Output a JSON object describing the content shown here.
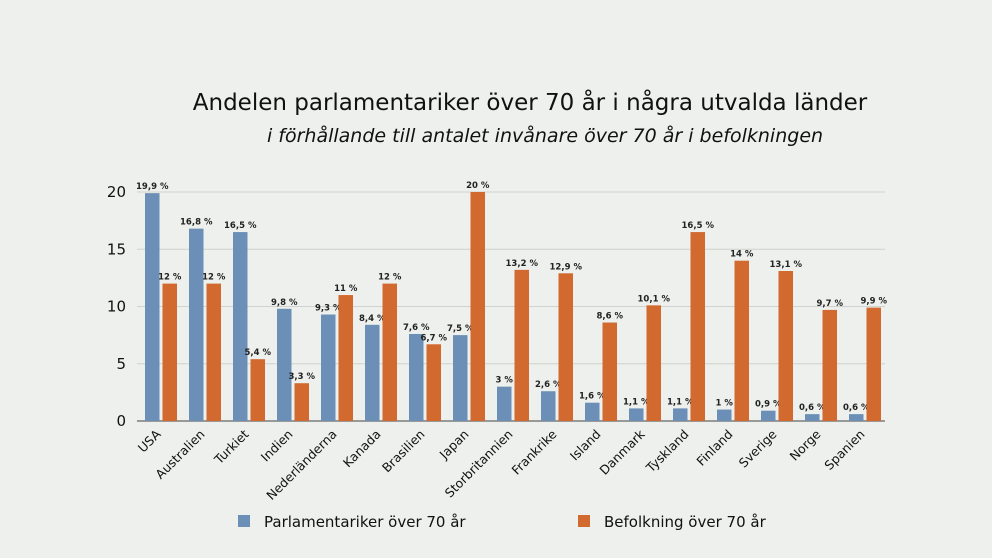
{
  "chart_data": {
    "type": "bar",
    "title": "Andelen parlamentariker över 70 år i några utvalda länder",
    "subtitle": "i förhållande till antalet invånare över 70 år i befolkningen",
    "xlabel": "",
    "ylabel": "",
    "ylim": [
      0,
      20
    ],
    "yticks": [
      0,
      5,
      10,
      15,
      20
    ],
    "grid": true,
    "legend_position": "bottom",
    "categories": [
      "USA",
      "Australien",
      "Turkiet",
      "Indien",
      "Nederländerna",
      "Kanada",
      "Brasilien",
      "Japan",
      "Storbritannien",
      "Frankrike",
      "Island",
      "Danmark",
      "Tyskland",
      "Finland",
      "Sverige",
      "Norge",
      "Spanien"
    ],
    "series": [
      {
        "name": "Parlamentariker över 70 år",
        "color": "#6b8fb6",
        "values": [
          19.9,
          16.8,
          16.5,
          9.8,
          9.3,
          8.4,
          7.6,
          7.5,
          3,
          2.6,
          1.6,
          1.1,
          1.1,
          1,
          0.9,
          0.6,
          0.6
        ],
        "labels": [
          "19,9 %",
          "16,8 %",
          "16,5 %",
          "9,8 %",
          "9,3 %",
          "8,4 %",
          "7,6 %",
          "7,5 %",
          "3 %",
          "2,6 %",
          "1,6 %",
          "1,1 %",
          "1,1 %",
          "1 %",
          "0,9 %",
          "0,6 %",
          "0,6 %"
        ]
      },
      {
        "name": "Befolkning över 70 år",
        "color": "#d2692f",
        "values": [
          12,
          12,
          5.4,
          3.3,
          11,
          12,
          6.7,
          20,
          13.2,
          12.9,
          8.6,
          10.1,
          16.5,
          14,
          13.1,
          9.7,
          9.9
        ],
        "labels": [
          "12 %",
          "12 %",
          "5,4 %",
          "3,3 %",
          "11 %",
          "12 %",
          "6,7 %",
          "20 %",
          "13,2 %",
          "12,9 %",
          "8,6 %",
          "10,1 %",
          "16,5 %",
          "14 %",
          "13,1 %",
          "9,7 %",
          "9,9 %"
        ]
      }
    ]
  }
}
